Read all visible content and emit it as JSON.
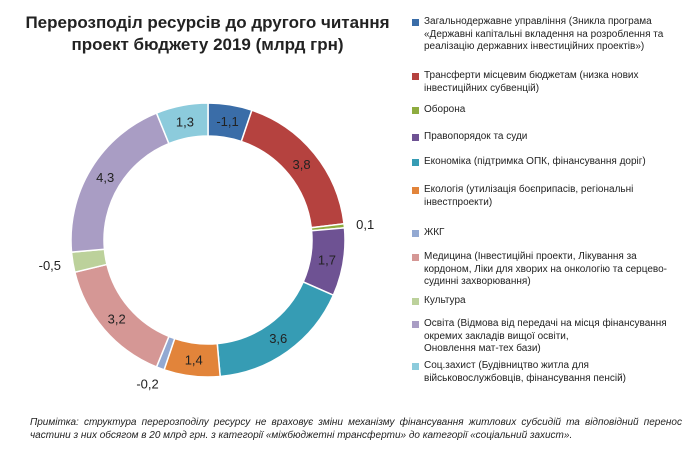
{
  "chart_data": {
    "type": "pie",
    "title_lines": [
      "Перерозподіл ресурсів до другого читання",
      "проект бюджету 2019 (млрд грн)"
    ],
    "slices": [
      {
        "label": "Загальнодержавне управління (Зникла програма «Державні капітальні вкладення на розроблення та реалізацію державних інвестиційних проектів»)",
        "legend_lines": [
          "Загальнодержавне управління (Зникла програма",
          "«Державні капітальні вкладення на розроблення та",
          "реалізацію державних інвестиційних проектів»)"
        ],
        "value": -1.1,
        "value_label": "-1,1",
        "color": "#3a6da8"
      },
      {
        "label": "Трансферти місцевим бюджетам (низка нових інвестиційних субвенцій)",
        "legend_lines": [
          "Трансферти місцевим бюджетам (низка нових",
          "інвестиційних субвенцій)"
        ],
        "value": 3.8,
        "value_label": "3,8",
        "color": "#b5423f"
      },
      {
        "label": "Оборона",
        "legend_lines": [
          "Оборона"
        ],
        "value": 0.1,
        "value_label": "0,1",
        "color": "#8eac3f"
      },
      {
        "label": "Правопорядок та суди",
        "legend_lines": [
          "Правопорядок та суди"
        ],
        "value": 1.7,
        "value_label": "1,7",
        "color": "#6e5293"
      },
      {
        "label": "Економіка (підтримка ОПК, фінансування доріг)",
        "legend_lines": [
          "Економіка (підтримка ОПК, фінансування доріг)"
        ],
        "value": 3.6,
        "value_label": "3,6",
        "color": "#369cb4"
      },
      {
        "label": "Екологія (утилізація боєприпасів, регіональні інвестпроекти)",
        "legend_lines": [
          "Екологія (утилізація боєприпасів, регіональні",
          "інвестпроекти)"
        ],
        "value": 1.4,
        "value_label": "1,4",
        "color": "#e2843a"
      },
      {
        "label": "ЖКГ",
        "legend_lines": [
          "ЖКГ"
        ],
        "value": -0.2,
        "value_label": "-0,2",
        "color": "#93a9d2"
      },
      {
        "label": "Медицина (Інвестиційні проекти, Лікування за кордоном, Ліки для хворих на онкологію та серцево-судинні захворювання)",
        "legend_lines": [
          "Медицина (Інвестиційні проекти, Лікування за",
          "кордоном, Ліки для хворих на онкологію та серцево-",
          "судинні захворювання)"
        ],
        "value": 3.2,
        "value_label": "3,2",
        "color": "#d59795"
      },
      {
        "label": "Культура",
        "legend_lines": [
          "Культура"
        ],
        "value": -0.5,
        "value_label": "-0,5",
        "color": "#bcd19b"
      },
      {
        "label": "Освіта (Відмова від передачі на місця фінансування окремих закладів вищої освіти, Оновлення мат-тех бази)",
        "legend_lines": [
          "Освіта (Відмова від передачі на місця фінансування",
          "окремих закладів вищої освіти,",
          "Оновлення мат-тех бази)"
        ],
        "value": 4.3,
        "value_label": "4,3",
        "color": "#a99dc4"
      },
      {
        "label": "Соц.захист (Будівництво житла для військовослужбовців, фінансування пенсій)",
        "legend_lines": [
          "Соц.захист (Будівництво житла для",
          "військовослужбовців, фінансування пенсій)"
        ],
        "value": 1.3,
        "value_label": "1,3",
        "color": "#8ccbdc"
      }
    ],
    "legend_placement": "right"
  },
  "footnote": "Примітка: структура перерозподілу ресурсу не враховує зміни механізму фінансування житлових субсидій та відповідний перенос частини з них обсягом в 20 млрд грн. з категорії «міжбюджетні трансферти» до категорії «соціальний захист»."
}
